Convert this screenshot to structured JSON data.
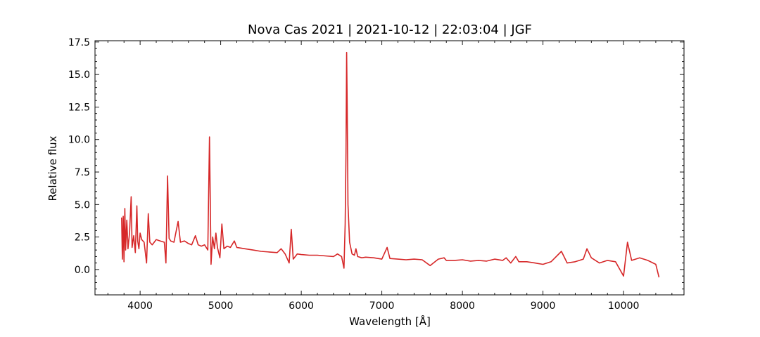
{
  "chart_data": {
    "type": "line",
    "title": "Nova Cas 2021 | 2021-10-12 | 22:03:04 | JGF",
    "xlabel": "Wavelength [Å]",
    "ylabel": "Relative flux",
    "xlim": [
      3440,
      10750
    ],
    "ylim": [
      -1.95,
      17.6
    ],
    "x_ticks": [
      4000,
      5000,
      6000,
      7000,
      8000,
      9000,
      10000
    ],
    "x_tick_labels": [
      "4000",
      "5000",
      "6000",
      "7000",
      "8000",
      "9000",
      "10000"
    ],
    "y_ticks": [
      0.0,
      2.5,
      5.0,
      7.5,
      10.0,
      12.5,
      15.0,
      17.5
    ],
    "y_tick_labels": [
      "0.0",
      "2.5",
      "5.0",
      "7.5",
      "10.0",
      "12.5",
      "15.0",
      "17.5"
    ],
    "x_minor_step": 200,
    "y_minor_step": 0.5,
    "grid": false,
    "legend": "none",
    "color": "#d62728",
    "series": [
      {
        "x": [
          3770,
          3780,
          3790,
          3800,
          3810,
          3820,
          3835,
          3850,
          3870,
          3889,
          3900,
          3920,
          3940,
          3960,
          3970,
          3985,
          4000,
          4020,
          4050,
          4080,
          4101,
          4120,
          4150,
          4200,
          4250,
          4300,
          4320,
          4340,
          4360,
          4380,
          4420,
          4471,
          4500,
          4550,
          4600,
          4640,
          4686,
          4720,
          4760,
          4800,
          4840,
          4861,
          4880,
          4900,
          4922,
          4940,
          4960,
          4990,
          5015,
          5040,
          5080,
          5120,
          5169,
          5200,
          5300,
          5400,
          5500,
          5600,
          5700,
          5750,
          5800,
          5850,
          5876,
          5900,
          5950,
          6000,
          6100,
          6200,
          6300,
          6400,
          6450,
          6500,
          6530,
          6545,
          6555,
          6563,
          6570,
          6580,
          6600,
          6630,
          6660,
          6678,
          6700,
          6750,
          6800,
          6900,
          7000,
          7065,
          7100,
          7200,
          7300,
          7400,
          7500,
          7600,
          7700,
          7773,
          7800,
          7900,
          8000,
          8100,
          8200,
          8300,
          8400,
          8500,
          8542,
          8600,
          8662,
          8700,
          8800,
          8900,
          9000,
          9100,
          9229,
          9300,
          9400,
          9500,
          9546,
          9600,
          9700,
          9800,
          9900,
          10000,
          10049,
          10100,
          10200,
          10300,
          10400,
          10440
        ],
        "y": [
          4.0,
          0.8,
          4.1,
          0.6,
          4.7,
          1.5,
          3.8,
          1.6,
          2.9,
          5.6,
          1.7,
          2.6,
          1.3,
          4.9,
          2.2,
          1.6,
          2.8,
          2.3,
          2.1,
          0.5,
          4.3,
          2.1,
          1.9,
          2.3,
          2.2,
          2.1,
          0.5,
          7.2,
          2.4,
          2.2,
          2.1,
          3.7,
          2.1,
          2.2,
          2.0,
          1.9,
          2.6,
          1.9,
          1.8,
          1.9,
          1.5,
          10.2,
          0.4,
          2.5,
          1.6,
          2.8,
          1.7,
          0.9,
          3.5,
          1.6,
          1.8,
          1.7,
          2.2,
          1.7,
          1.6,
          1.5,
          1.4,
          1.35,
          1.3,
          1.6,
          1.2,
          0.5,
          3.1,
          0.8,
          1.2,
          1.15,
          1.1,
          1.1,
          1.05,
          1.0,
          1.2,
          1.0,
          0.1,
          3.5,
          9.0,
          16.7,
          12.5,
          5.0,
          2.1,
          1.2,
          1.1,
          1.6,
          1.0,
          0.9,
          0.95,
          0.9,
          0.8,
          1.7,
          0.85,
          0.8,
          0.75,
          0.8,
          0.75,
          0.3,
          0.8,
          0.9,
          0.7,
          0.7,
          0.75,
          0.65,
          0.7,
          0.65,
          0.8,
          0.7,
          0.9,
          0.5,
          1.0,
          0.6,
          0.6,
          0.5,
          0.4,
          0.6,
          1.4,
          0.5,
          0.6,
          0.8,
          1.6,
          0.9,
          0.5,
          0.7,
          0.6,
          -0.5,
          2.1,
          0.7,
          0.9,
          0.7,
          0.4,
          -0.6
        ]
      }
    ]
  }
}
